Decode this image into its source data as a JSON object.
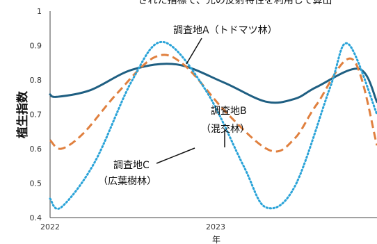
{
  "chart_data": {
    "type": "line",
    "title": "された指標で、光の反射特性を利用して算出",
    "xlabel": "年",
    "ylabel": "植生指数",
    "xlim": [
      2022.0,
      2023.47
    ],
    "ylim": [
      0.4,
      1.0
    ],
    "yticks": [
      "0.4",
      "0.5",
      "0.6",
      "0.7",
      "0.8",
      "0.9",
      "1"
    ],
    "xticks": [
      {
        "value": 2022.0,
        "label": "2022"
      },
      {
        "value": 2023.0,
        "label": "2023"
      }
    ],
    "grid": false,
    "series": [
      {
        "name": "調査地A（トドマツ林）",
        "color": "#1f5f82",
        "style": "solid",
        "x": [
          2022.0,
          2022.03,
          2022.18,
          2022.37,
          2022.57,
          2022.78,
          2022.97,
          2023.1,
          2023.2,
          2023.39,
          2023.47
        ],
        "y": [
          0.758,
          0.751,
          0.77,
          0.83,
          0.845,
          0.793,
          0.737,
          0.745,
          0.78,
          0.832,
          0.736
        ]
      },
      {
        "name": "調査地B（混交林）",
        "color": "#e0803f",
        "style": "dashed",
        "x": [
          2022.0,
          2022.05,
          2022.15,
          2022.3,
          2022.47,
          2022.6,
          2022.8,
          2022.99,
          2023.1,
          2023.2,
          2023.36,
          2023.47
        ],
        "y": [
          0.625,
          0.6,
          0.645,
          0.76,
          0.866,
          0.845,
          0.7,
          0.595,
          0.63,
          0.73,
          0.86,
          0.61
        ]
      },
      {
        "name": "調査地C（広葉樹林）",
        "color": "#2aa3d8",
        "style": "dotted",
        "x": [
          2022.0,
          2022.05,
          2022.2,
          2022.37,
          2022.51,
          2022.7,
          2022.87,
          2022.97,
          2023.1,
          2023.26,
          2023.34,
          2023.47
        ],
        "y": [
          0.455,
          0.43,
          0.56,
          0.8,
          0.91,
          0.77,
          0.55,
          0.43,
          0.49,
          0.78,
          0.905,
          0.7
        ]
      }
    ],
    "annotations": [
      {
        "line1": "調査地A（トドマツ林）",
        "line2": ""
      },
      {
        "line1": "調査地B",
        "line2": "（混交林）"
      },
      {
        "line1": "調査地C",
        "line2": "（広葉樹林）"
      }
    ]
  }
}
